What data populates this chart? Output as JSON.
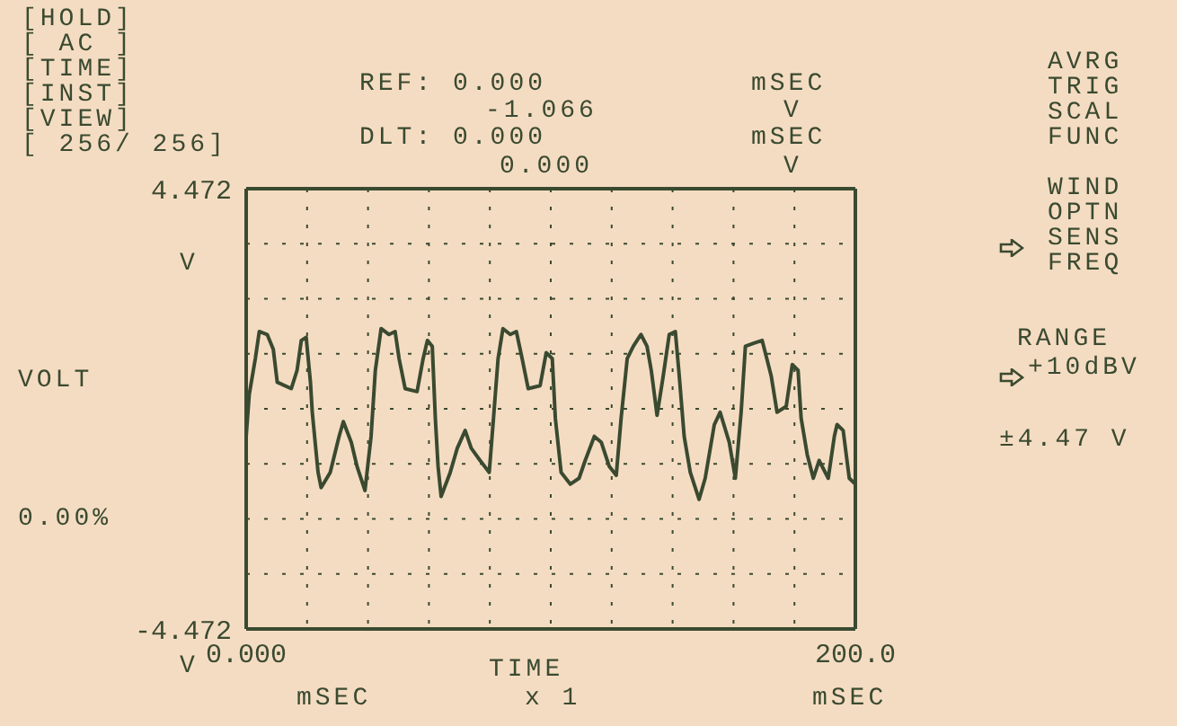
{
  "chart_data": {
    "type": "line",
    "ylabel": "VOLT",
    "xlabel": "TIME",
    "xlim": [
      0,
      200
    ],
    "ylim": [
      -4.472,
      4.472
    ],
    "xticks": [
      {
        "value": 0,
        "label": "0.000"
      },
      {
        "value": 20,
        "label": null
      },
      {
        "value": 40,
        "label": null
      },
      {
        "value": 60,
        "label": null
      },
      {
        "value": 80,
        "label": null
      },
      {
        "value": 100,
        "label": null
      },
      {
        "value": 120,
        "label": null
      },
      {
        "value": 140,
        "label": null
      },
      {
        "value": 160,
        "label": null
      },
      {
        "value": 180,
        "label": null
      },
      {
        "value": 200,
        "label": "200.0"
      }
    ],
    "yticks": [
      {
        "value": -4.472,
        "label": "-4.472"
      },
      {
        "value": -3.354,
        "label": null
      },
      {
        "value": -2.236,
        "label": null
      },
      {
        "value": -1.118,
        "label": null
      },
      {
        "value": 0,
        "label": null
      },
      {
        "value": 1.118,
        "label": null
      },
      {
        "value": 2.236,
        "label": null
      },
      {
        "value": 3.354,
        "label": null
      },
      {
        "value": 4.472,
        "label": "4.472"
      }
    ],
    "grid": true,
    "marker": "none",
    "line_style": "solid",
    "series": [
      {
        "color": "#3a4a30",
        "x": [
          0,
          1,
          3,
          4.3,
          6.9,
          8.9,
          10.2,
          14.8,
          16.7,
          18.1,
          19.7,
          21.1,
          21.7,
          23.6,
          24.6,
          27.6,
          30.5,
          31.9,
          34.5,
          36.4,
          39,
          41,
          42.4,
          44.3,
          46.9,
          48.9,
          50.2,
          52.2,
          56.1,
          58.1,
          59.5,
          61.1,
          62.1,
          63,
          64,
          67,
          69.3,
          71.9,
          73.9,
          76.8,
          79.8,
          81.2,
          82.7,
          84.3,
          86.7,
          88.7,
          90.6,
          92.6,
          96.5,
          98.5,
          100.5,
          101.5,
          103.4,
          106.4,
          109.3,
          111.3,
          114.3,
          116.6,
          119.2,
          121.5,
          123.1,
          125.1,
          127.1,
          129.6,
          131.6,
          133,
          134.9,
          136.9,
          138.9,
          140.9,
          142.2,
          143.8,
          145.8,
          148.7,
          150.7,
          153.7,
          155.6,
          158.6,
          160.6,
          162.5,
          163.9,
          166.5,
          169.4,
          172.4,
          174.3,
          177.3,
          179.3,
          181.2,
          182.2,
          184.2,
          186.2,
          188.1,
          191.1,
          193.1,
          194,
          196,
          198,
          200
        ],
        "values": [
          -0.56,
          0.29,
          1.02,
          1.57,
          1.51,
          1.21,
          0.54,
          0.41,
          0.78,
          1.39,
          1.45,
          0.54,
          -0.07,
          -1.29,
          -1.6,
          -1.29,
          -0.56,
          -0.26,
          -0.68,
          -1.17,
          -1.66,
          -0.56,
          0.78,
          1.63,
          1.51,
          1.57,
          1.02,
          0.41,
          0.35,
          1.02,
          1.39,
          1.27,
          -0.19,
          -1.17,
          -1.78,
          -1.29,
          -0.8,
          -0.44,
          -0.8,
          -1.05,
          -1.29,
          -0.19,
          1.02,
          1.63,
          1.51,
          1.57,
          1.02,
          0.41,
          0.47,
          1.14,
          1.02,
          -0.19,
          -1.29,
          -1.53,
          -1.41,
          -1.05,
          -0.56,
          -0.68,
          -1.17,
          -1.35,
          -0.19,
          1.02,
          1.27,
          1.51,
          1.27,
          0.78,
          -0.13,
          0.66,
          1.51,
          1.57,
          0.66,
          -0.56,
          -1.29,
          -1.84,
          -1.41,
          -0.32,
          -0.07,
          -0.68,
          -1.41,
          -0.07,
          1.27,
          1.33,
          1.39,
          0.66,
          -0.07,
          0.05,
          0.9,
          0.78,
          -0.19,
          -0.93,
          -1.41,
          -1.05,
          -1.41,
          -0.56,
          -0.32,
          -0.44,
          -1.41,
          -1.53
        ]
      }
    ],
    "annotations": [
      "[HOLD]",
      "[ AC ]",
      "[TIME]",
      "[INST]",
      "[VIEW]",
      "[ 256/ 256]",
      "REF: 0.000",
      "mSEC",
      "-1.066",
      "V",
      "DLT: 0.000",
      "mSEC",
      "0.000",
      "V",
      "AVRG",
      "TRIG",
      "SCAL",
      "FUNC",
      "WIND",
      "OPTN",
      "SENS",
      "FREQ",
      "RANGE",
      "+10dBV",
      "±4.47 V",
      "V",
      "0.00%",
      "V",
      "mSEC",
      "x 1",
      "mSEC"
    ]
  }
}
